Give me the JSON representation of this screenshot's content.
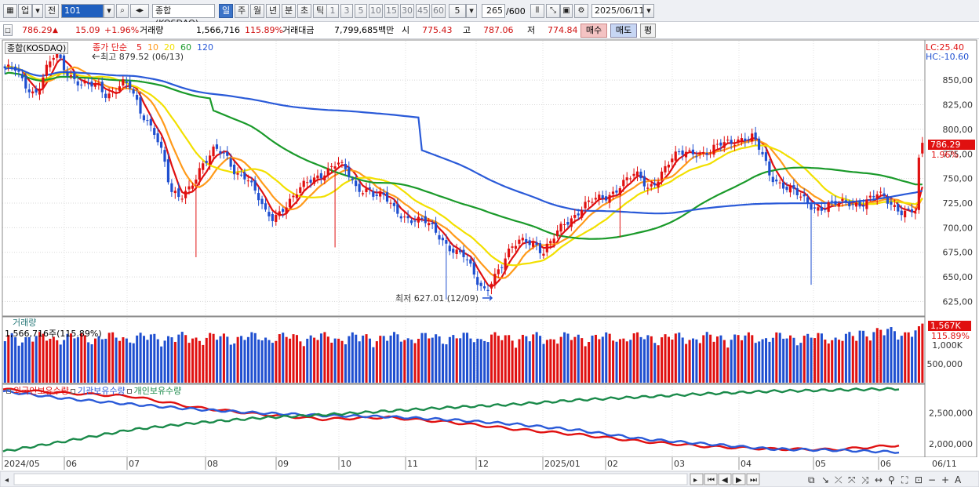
{
  "toolbar": {
    "mode": "업",
    "period_label": "전",
    "code": "101",
    "index_name": "종합(KOSDAQ)",
    "timeframes": [
      "일",
      "주",
      "월",
      "년",
      "분",
      "초",
      "틱"
    ],
    "selected_timeframe": "일",
    "minutes": [
      "1",
      "3",
      "5",
      "10",
      "15",
      "30",
      "45",
      "60"
    ],
    "custom_minute": "5",
    "count": "265",
    "count_max": "/600",
    "date": "2025/06/11"
  },
  "infobar": {
    "price": "786.29",
    "change": "15.09",
    "change_pct": "+1.96%",
    "volume_label": "거래량",
    "volume": "1,566,716",
    "volume_pct": "115.89%",
    "amount_label": "거래대금",
    "amount": "7,799,685백만",
    "open_label": "시",
    "open": "775.43",
    "high_label": "고",
    "high": "787.06",
    "low_label": "저",
    "low": "774.84",
    "buy": "매수",
    "sell": "매도",
    "avg": "평"
  },
  "price_panel": {
    "title": "종합(KOSDAQ)",
    "ma_label": "종가 단순",
    "ma_periods": [
      "5",
      "10",
      "20",
      "60",
      "120"
    ],
    "ma_colors": [
      "#e01010",
      "#ff9a1a",
      "#f2e000",
      "#1a9a2a",
      "#2a5ad8"
    ],
    "lc": "LC:25.40",
    "hc": "HC:-10.60",
    "high_note": "최고 879.52 (06/13)",
    "low_note": "최저 627.01 (12/09)",
    "last_price_tag": "786.29",
    "last_pct_tag": "1.96%"
  },
  "volume_panel": {
    "title": "거래량",
    "value_line": "1,566,716주(115.89%)",
    "last_tag": "1,567K",
    "last_pct": "115.89%"
  },
  "holdings_panel": {
    "series": [
      {
        "name": "외국인보유수량",
        "color": "#e01010"
      },
      {
        "name": "기관보유수량",
        "color": "#2a5ad8"
      },
      {
        "name": "개인보유수량",
        "color": "#1a8a4a"
      }
    ]
  },
  "colors": {
    "up": "#e01010",
    "down": "#1f4fd0"
  },
  "chart_data": {
    "type": "candlestick",
    "x_labels": [
      "2024/05",
      "06",
      "07",
      "08",
      "09",
      "10",
      "11",
      "12",
      "2025/01",
      "02",
      "03",
      "04",
      "05",
      "06",
      "06/11"
    ],
    "price_axis": {
      "ticks": [
        "850,00",
        "825,00",
        "800,00",
        "775,00",
        "750,00",
        "725,00",
        "700,00",
        "675,00",
        "650,00",
        "625,00"
      ],
      "range": [
        611,
        890
      ]
    },
    "volume_axis": {
      "ticks": [
        "1,000K",
        "500,000"
      ],
      "range": [
        0,
        1600000
      ]
    },
    "holdings_axis": {
      "ticks": [
        "2,500,000",
        "2,000,000"
      ],
      "range": [
        1800000,
        2950000
      ]
    },
    "close_path": [
      [
        0,
        862
      ],
      [
        6,
        858
      ],
      [
        10,
        845
      ],
      [
        16,
        838
      ],
      [
        22,
        862
      ],
      [
        27,
        875
      ],
      [
        32,
        858
      ],
      [
        40,
        850
      ],
      [
        48,
        842
      ],
      [
        54,
        832
      ],
      [
        62,
        852
      ],
      [
        66,
        845
      ],
      [
        72,
        812
      ],
      [
        80,
        798
      ],
      [
        84,
        776
      ],
      [
        86,
        755
      ],
      [
        88,
        736
      ],
      [
        93,
        726
      ],
      [
        98,
        740
      ],
      [
        104,
        766
      ],
      [
        111,
        779
      ],
      [
        117,
        770
      ],
      [
        122,
        757
      ],
      [
        128,
        755
      ],
      [
        132,
        738
      ],
      [
        138,
        712
      ],
      [
        142,
        709
      ],
      [
        147,
        722
      ],
      [
        153,
        732
      ],
      [
        161,
        745
      ],
      [
        170,
        760
      ],
      [
        176,
        766
      ],
      [
        182,
        752
      ],
      [
        186,
        740
      ],
      [
        193,
        742
      ],
      [
        196,
        733
      ],
      [
        200,
        731
      ],
      [
        206,
        718
      ],
      [
        213,
        712
      ],
      [
        222,
        705
      ],
      [
        230,
        692
      ],
      [
        238,
        678
      ],
      [
        243,
        670
      ],
      [
        248,
        652
      ],
      [
        251,
        642
      ],
      [
        255,
        638
      ],
      [
        258,
        650
      ],
      [
        263,
        660
      ],
      [
        269,
        678
      ],
      [
        273,
        688
      ],
      [
        277,
        690
      ],
      [
        281,
        685
      ],
      [
        285,
        672
      ],
      [
        289,
        682
      ],
      [
        296,
        706
      ],
      [
        306,
        720
      ],
      [
        312,
        726
      ],
      [
        318,
        732
      ],
      [
        326,
        744
      ],
      [
        334,
        752
      ],
      [
        338,
        748
      ],
      [
        340,
        741
      ],
      [
        346,
        752
      ],
      [
        352,
        765
      ],
      [
        358,
        775
      ],
      [
        364,
        780
      ],
      [
        370,
        776
      ],
      [
        374,
        775
      ],
      [
        380,
        785
      ],
      [
        388,
        792
      ],
      [
        396,
        790
      ],
      [
        402,
        770
      ],
      [
        405,
        755
      ],
      [
        410,
        748
      ],
      [
        416,
        738
      ],
      [
        422,
        728
      ],
      [
        428,
        722
      ],
      [
        432,
        722
      ],
      [
        436,
        724
      ],
      [
        442,
        722
      ],
      [
        448,
        725
      ],
      [
        454,
        727
      ],
      [
        458,
        730
      ],
      [
        462,
        732
      ],
      [
        468,
        725
      ],
      [
        474,
        720
      ],
      [
        480,
        718
      ],
      [
        484,
        713
      ],
      [
        486,
        712
      ]
    ],
    "series": [
      {
        "name": "외국인보유수량",
        "values": [
          2880000,
          2820000,
          2770000,
          2590000,
          2480000,
          2400000,
          2430000,
          2350000,
          2240000,
          2150000,
          2040000,
          1960000,
          1920000,
          1910000,
          1980000
        ]
      },
      {
        "name": "기관보유수량",
        "values": [
          2850000,
          2730000,
          2640000,
          2560000,
          2500000,
          2460000,
          2440000,
          2390000,
          2320000,
          2220000,
          2080000,
          2000000,
          1920000,
          1900000,
          1870000
        ]
      },
      {
        "name": "개인보유수량",
        "values": [
          1880000,
          2050000,
          2230000,
          2340000,
          2420000,
          2470000,
          2530000,
          2590000,
          2640000,
          2710000,
          2760000,
          2810000,
          2850000,
          2870000,
          2890000
        ]
      }
    ]
  }
}
